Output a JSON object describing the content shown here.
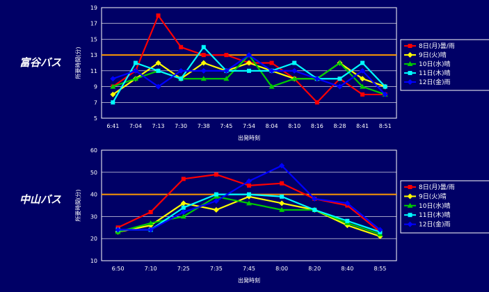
{
  "colors": {
    "background": "#000066",
    "reference_line": "#ff9900",
    "grid": "#ffffff"
  },
  "chart_data": [
    {
      "type": "line",
      "title": "富谷バス",
      "xlabel": "出発時刻",
      "ylabel": "所要時間(分)",
      "ylim": [
        5,
        19
      ],
      "yticks": [
        5,
        7,
        9,
        11,
        13,
        15,
        17,
        19
      ],
      "reference_value": 13,
      "reference_color": "#ff9900",
      "grid": true,
      "legend_position": "right",
      "categories": [
        "6:41",
        "7:04",
        "7:13",
        "7:30",
        "7:38",
        "7:45",
        "7:54",
        "8:04",
        "8:10",
        "8:16",
        "8:28",
        "8:41",
        "8:51"
      ],
      "series": [
        {
          "name": "8日(月)曇/雨",
          "color": "#ff0000",
          "marker": "square",
          "values": [
            9,
            11,
            18,
            14,
            13,
            13,
            12,
            12,
            10,
            7,
            10,
            8,
            8
          ]
        },
        {
          "name": "9日(火)晴",
          "color": "#ffff00",
          "marker": "diamond",
          "values": [
            8,
            10,
            12,
            10,
            12,
            11,
            12,
            11,
            10,
            10,
            12,
            10,
            9
          ]
        },
        {
          "name": "10日(水)晴",
          "color": "#00cc00",
          "marker": "triangle",
          "values": [
            9,
            10,
            11,
            10,
            10,
            10,
            13,
            9,
            10,
            10,
            12,
            9,
            8
          ]
        },
        {
          "name": "11日(木)晴",
          "color": "#00ffff",
          "marker": "square",
          "values": [
            7,
            12,
            11,
            10,
            14,
            11,
            11,
            11,
            12,
            10,
            10,
            12,
            9
          ]
        },
        {
          "name": "12日(金)雨",
          "color": "#0000ff",
          "marker": "diamond",
          "values": [
            10,
            11,
            9,
            11,
            11,
            11,
            13,
            11,
            11,
            10,
            9,
            11,
            8
          ]
        }
      ]
    },
    {
      "type": "line",
      "title": "中山バス",
      "xlabel": "出発時刻",
      "ylabel": "所要時間(分)",
      "ylim": [
        10,
        60
      ],
      "yticks": [
        10,
        20,
        30,
        40,
        50,
        60
      ],
      "reference_value": 40,
      "reference_color": "#ff9900",
      "grid": true,
      "legend_position": "right",
      "categories": [
        "6:50",
        "7:10",
        "7:25",
        "7:35",
        "7:45",
        "8:00",
        "8:20",
        "8:40",
        "8:55"
      ],
      "series": [
        {
          "name": "8日(月)曇/雨",
          "color": "#ff0000",
          "marker": "square",
          "values": [
            25,
            32,
            47,
            49,
            44,
            45,
            38,
            35,
            23
          ]
        },
        {
          "name": "9日(火)晴",
          "color": "#ffff00",
          "marker": "diamond",
          "values": [
            23,
            26,
            36,
            33,
            39,
            36,
            33,
            26,
            21
          ]
        },
        {
          "name": "10日(水)晴",
          "color": "#00cc00",
          "marker": "triangle",
          "values": [
            23,
            27,
            30,
            39,
            36,
            33,
            33,
            27,
            22
          ]
        },
        {
          "name": "11日(木)晴",
          "color": "#00ffff",
          "marker": "square",
          "values": [
            24,
            24,
            34,
            40,
            40,
            39,
            33,
            28,
            23
          ]
        },
        {
          "name": "12日(金)雨",
          "color": "#0000ff",
          "marker": "diamond",
          "values": [
            24,
            24,
            32,
            37,
            46,
            53,
            38,
            36,
            24
          ]
        }
      ]
    }
  ]
}
